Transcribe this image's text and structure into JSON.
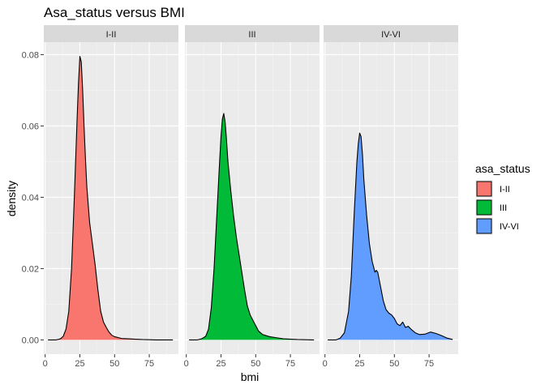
{
  "chart_data": {
    "type": "area",
    "title": "Asa_status versus BMI",
    "xlabel": "bmi",
    "ylabel": "density",
    "xlim": [
      -1,
      96
    ],
    "ylim": [
      -0.004,
      0.0835
    ],
    "x_ticks": [
      0,
      25,
      50,
      75
    ],
    "y_ticks": [
      0.0,
      0.02,
      0.04,
      0.06,
      0.08
    ],
    "y_tick_labels": [
      "0.00",
      "0.02",
      "0.04",
      "0.06",
      "0.08"
    ],
    "grid": true,
    "legend": {
      "title": "asa_status",
      "placement": "right",
      "entries": [
        {
          "label": "I-II",
          "color": "#F8766D"
        },
        {
          "label": "III",
          "color": "#00BA38"
        },
        {
          "label": "IV-VI",
          "color": "#619CFF"
        }
      ]
    },
    "panels": [
      {
        "label": "I-II",
        "color": "#F8766D",
        "x": [
          2,
          8,
          11,
          13,
          15,
          17,
          19,
          21,
          23,
          24,
          25,
          26,
          27,
          28,
          29,
          30,
          32,
          34,
          36,
          38,
          40,
          42,
          44,
          46,
          48,
          50,
          55,
          60,
          65,
          70,
          80,
          92
        ],
        "y": [
          0.0,
          0.0,
          0.0003,
          0.001,
          0.003,
          0.008,
          0.02,
          0.04,
          0.062,
          0.072,
          0.0795,
          0.078,
          0.07,
          0.06,
          0.051,
          0.043,
          0.033,
          0.027,
          0.021,
          0.014,
          0.008,
          0.005,
          0.0035,
          0.0022,
          0.0013,
          0.0009,
          0.0004,
          0.0003,
          0.0002,
          0.0001,
          0.0,
          0.0
        ]
      },
      {
        "label": "III",
        "color": "#00BA38",
        "x": [
          2,
          8,
          11,
          14,
          16,
          18,
          20,
          22,
          24,
          25,
          26,
          27,
          28,
          29,
          30,
          32,
          34,
          36,
          38,
          40,
          42,
          44,
          46,
          48,
          50,
          52,
          55,
          60,
          65,
          70,
          80,
          92
        ],
        "y": [
          0.0,
          0.0,
          0.0003,
          0.001,
          0.003,
          0.009,
          0.02,
          0.035,
          0.05,
          0.057,
          0.062,
          0.0635,
          0.061,
          0.056,
          0.05,
          0.042,
          0.035,
          0.029,
          0.024,
          0.019,
          0.014,
          0.0095,
          0.007,
          0.0055,
          0.004,
          0.0025,
          0.0015,
          0.0009,
          0.0006,
          0.0003,
          0.0001,
          0.0
        ]
      },
      {
        "label": "IV-VI",
        "color": "#619CFF",
        "x": [
          2,
          8,
          11,
          14,
          17,
          19,
          21,
          23,
          24,
          25,
          26,
          27,
          28,
          30,
          32,
          34,
          36,
          37,
          38,
          40,
          42,
          44,
          46,
          48,
          50,
          52,
          54,
          56,
          58,
          60,
          62,
          65,
          68,
          72,
          76,
          80,
          84,
          88,
          92
        ],
        "y": [
          0.0,
          0.0,
          0.0005,
          0.002,
          0.008,
          0.018,
          0.035,
          0.05,
          0.055,
          0.058,
          0.057,
          0.052,
          0.045,
          0.035,
          0.027,
          0.022,
          0.019,
          0.0195,
          0.019,
          0.015,
          0.011,
          0.0085,
          0.0075,
          0.007,
          0.006,
          0.0045,
          0.004,
          0.005,
          0.0035,
          0.0038,
          0.003,
          0.002,
          0.0015,
          0.0016,
          0.0022,
          0.0018,
          0.0012,
          0.0005,
          0.0001
        ]
      }
    ]
  }
}
